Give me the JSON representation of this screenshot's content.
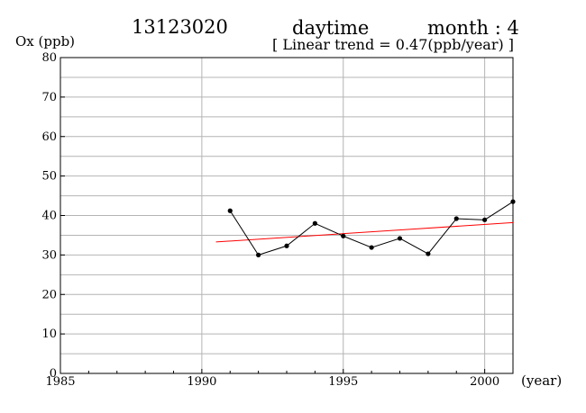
{
  "header": {
    "station": "13123020",
    "period": "daytime",
    "month": "month : 4",
    "subtitle": "[ Linear trend = 0.47(ppb/year) ]"
  },
  "chart_data": {
    "type": "line",
    "title": "13123020",
    "subtitle": "[ Linear trend = 0.47(ppb/year) ]",
    "ylabel": "Ox (ppb)",
    "xlabel": "(year)",
    "xlim": [
      1985,
      2001
    ],
    "ylim": [
      0,
      80
    ],
    "x_ticks": [
      1985,
      1990,
      1995,
      2000
    ],
    "y_ticks": [
      0,
      10,
      20,
      30,
      40,
      50,
      60,
      70,
      80
    ],
    "grid": true,
    "colors": {
      "series": "#000000",
      "trend": "#ff0000",
      "grid": "#b4b4b4"
    },
    "series": [
      {
        "x": [
          1991,
          1992,
          1993,
          1994,
          1995,
          1996,
          1997,
          1998,
          1999,
          2000,
          2001
        ],
        "values": [
          41.2,
          30.0,
          32.3,
          38.0,
          34.8,
          31.9,
          34.2,
          30.3,
          39.2,
          38.9,
          43.5
        ]
      }
    ],
    "trend": {
      "x": [
        1990.5,
        2001
      ],
      "values": [
        33.3,
        38.2
      ],
      "slope": 0.47
    }
  }
}
